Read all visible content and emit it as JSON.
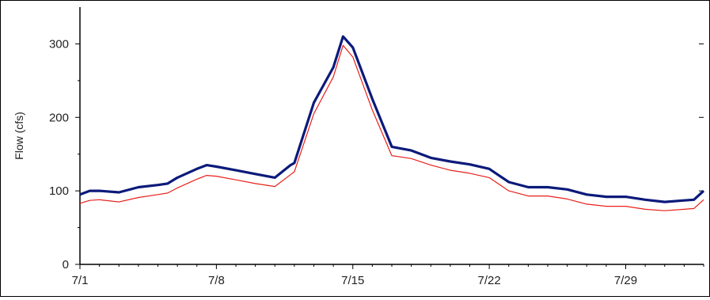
{
  "chart_data": {
    "type": "line",
    "title": "",
    "xlabel": "",
    "ylabel": "Flow (cfs)",
    "ylim": [
      0,
      350
    ],
    "yticks": [
      0,
      100,
      200,
      300
    ],
    "xticks": [
      {
        "day": 1,
        "label": "7/1"
      },
      {
        "day": 8,
        "label": "7/8"
      },
      {
        "day": 15,
        "label": "7/15"
      },
      {
        "day": 22,
        "label": "7/22"
      },
      {
        "day": 29,
        "label": "7/29"
      }
    ],
    "xlim": [
      1,
      33
    ],
    "grid": false,
    "legend": "none",
    "x": [
      1,
      1.5,
      2,
      3,
      4,
      5,
      5.5,
      6,
      7,
      7.5,
      8,
      9,
      10,
      11,
      11.8,
      12,
      13,
      14,
      14.5,
      15,
      16,
      17,
      18,
      19,
      20,
      21,
      22,
      23,
      24,
      25,
      26,
      27,
      28,
      29,
      30,
      31,
      32,
      32.5,
      33
    ],
    "series": [
      {
        "color": "#0b1a7a",
        "values": [
          95,
          100,
          100,
          98,
          105,
          108,
          110,
          118,
          130,
          135,
          133,
          128,
          123,
          118,
          135,
          138,
          220,
          268,
          310,
          295,
          225,
          160,
          155,
          145,
          140,
          136,
          130,
          112,
          105,
          105,
          102,
          95,
          92,
          92,
          88,
          85,
          87,
          88,
          100
        ]
      },
      {
        "color": "#e8201a",
        "values": [
          83,
          87,
          88,
          85,
          91,
          95,
          97,
          104,
          116,
          121,
          120,
          115,
          110,
          106,
          122,
          126,
          205,
          255,
          298,
          282,
          210,
          148,
          144,
          135,
          128,
          124,
          118,
          100,
          93,
          93,
          89,
          82,
          79,
          79,
          75,
          73,
          75,
          76,
          88
        ]
      }
    ]
  }
}
